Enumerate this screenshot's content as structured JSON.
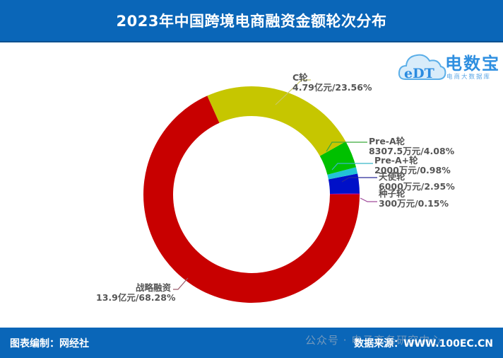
{
  "header": {
    "title": "2023年中国跨境电商融资金额轮次分布"
  },
  "logo": {
    "mark": "eDT",
    "brand": "电数宝",
    "tagline": "电商大数据库"
  },
  "footer": {
    "credit": "图表编制：网经社",
    "watermark": "公众号 · 电子商务研究中心",
    "source": "数据来源：WWW.100EC.CN"
  },
  "colors": {
    "header_bg": "#0a66b8",
    "footer_bg": "#0a66b8"
  },
  "chart_data": {
    "type": "pie",
    "subtype": "donut",
    "title": "2023年中国跨境电商融资金额轮次分布",
    "start_angle_deg": 0,
    "direction": "counterclockwise",
    "slices": [
      {
        "name": "种子轮",
        "amount": "300万元",
        "percent": 0.15,
        "color": "#c0007a",
        "line_color": "#a04a9a"
      },
      {
        "name": "天使轮",
        "amount": "6000万元",
        "percent": 2.95,
        "color": "#0010c8",
        "line_color": "#2a2a9a"
      },
      {
        "name": "Pre-A+轮",
        "amount": "2000万元",
        "percent": 0.98,
        "color": "#22c3d6",
        "line_color": "#38b7c8"
      },
      {
        "name": "Pre-A轮",
        "amount": "8307.5万元",
        "percent": 4.08,
        "color": "#00c000",
        "line_color": "#3aaa3a"
      },
      {
        "name": "C轮",
        "amount": "4.79亿元",
        "percent": 23.56,
        "color": "#c6c600",
        "line_color": "#c8c86a"
      },
      {
        "name": "战略融资",
        "amount": "13.9亿元",
        "percent": 68.28,
        "color": "#c80000",
        "line_color": "#9a5a6a"
      }
    ],
    "labels": [
      {
        "line1": "C轮",
        "line2": "4.79亿元/23.56%"
      },
      {
        "line1": "Pre-A轮",
        "line2": "8307.5万元/4.08%"
      },
      {
        "line1": "Pre-A+轮",
        "line2": "2000万元/0.98%"
      },
      {
        "line1": "天使轮",
        "line2": "6000万元/2.95%"
      },
      {
        "line1": "种子轮",
        "line2": "300万元/0.15%"
      },
      {
        "line1": "战略融资",
        "line2": "13.9亿元/68.28%"
      }
    ],
    "legend": "none"
  }
}
